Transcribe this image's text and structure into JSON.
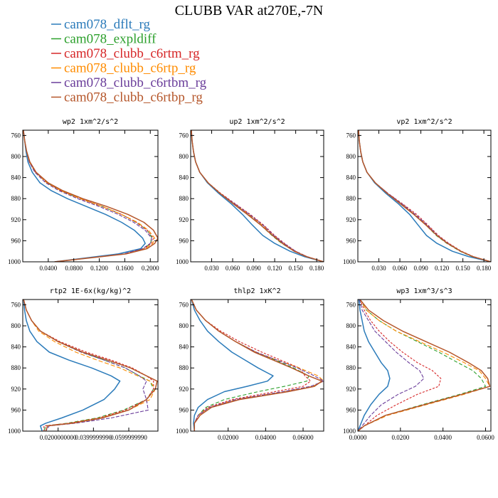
{
  "figure_title": "CLUBB VAR at270E,-7N",
  "colors": {
    "cam078_dflt_rg": "#2b7bba",
    "cam078_expldiff": "#2ca02c",
    "cam078_clubb_c6rtm_rg": "#d62728",
    "cam078_clubb_c6rtp_rg": "#ff8c00",
    "cam078_clubb_c6rtbm_rg": "#6a3d9a",
    "cam078_clubb_c6rtbp_rg": "#b5562a"
  },
  "legend": [
    {
      "name": "cam078_dflt_rg",
      "color": "#2b7bba",
      "dash": "solid"
    },
    {
      "name": "cam078_expldiff",
      "color": "#2ca02c",
      "dash": "solid"
    },
    {
      "name": "cam078_clubb_c6rtm_rg",
      "color": "#d62728",
      "dash": "solid"
    },
    {
      "name": "cam078_clubb_c6rtp_rg",
      "color": "#ff8c00",
      "dash": "solid"
    },
    {
      "name": "cam078_clubb_c6rtbm_rg",
      "color": "#6a3d9a",
      "dash": "solid"
    },
    {
      "name": "cam078_clubb_c6rtbp_rg",
      "color": "#b5562a",
      "dash": "solid"
    }
  ],
  "chart_data": [
    {
      "type": "line",
      "title": "wp2  1xm^2/s^2",
      "xlim": [
        0,
        0.212
      ],
      "ylim": [
        1000,
        750
      ],
      "xticks": [
        0.04,
        0.08,
        0.12,
        0.16,
        0.2
      ],
      "xtick_labels": [
        "0.0400",
        "0.0800",
        "0.1200",
        "0.1600",
        "0.2000"
      ],
      "yticks": [
        760,
        800,
        840,
        880,
        920,
        960,
        1000
      ],
      "y": [
        750,
        770,
        790,
        810,
        830,
        850,
        865,
        880,
        895,
        910,
        925,
        940,
        955,
        965,
        975,
        985,
        1000
      ],
      "series": [
        {
          "name": "cam078_dflt_rg",
          "x": [
            0.001,
            0.003,
            0.005,
            0.008,
            0.015,
            0.027,
            0.045,
            0.07,
            0.1,
            0.13,
            0.155,
            0.175,
            0.188,
            0.192,
            0.185,
            0.15,
            0.05
          ]
        },
        {
          "name": "cam078_expldiff",
          "x": [
            0.001,
            0.003,
            0.006,
            0.01,
            0.02,
            0.038,
            0.06,
            0.09,
            0.125,
            0.155,
            0.178,
            0.195,
            0.203,
            0.2,
            0.19,
            0.16,
            0.05
          ]
        },
        {
          "name": "cam078_clubb_c6rtm_rg",
          "x": [
            0.001,
            0.003,
            0.006,
            0.01,
            0.02,
            0.038,
            0.06,
            0.09,
            0.125,
            0.155,
            0.178,
            0.195,
            0.205,
            0.202,
            0.19,
            0.16,
            0.05
          ]
        },
        {
          "name": "cam078_clubb_c6rtp_rg",
          "x": [
            0.001,
            0.003,
            0.006,
            0.01,
            0.02,
            0.038,
            0.06,
            0.09,
            0.125,
            0.155,
            0.18,
            0.197,
            0.207,
            0.204,
            0.192,
            0.16,
            0.05
          ]
        },
        {
          "name": "cam078_clubb_c6rtbm_rg",
          "x": [
            0.001,
            0.003,
            0.006,
            0.01,
            0.019,
            0.036,
            0.057,
            0.086,
            0.12,
            0.15,
            0.174,
            0.192,
            0.202,
            0.2,
            0.188,
            0.158,
            0.05
          ]
        },
        {
          "name": "cam078_clubb_c6rtbp_rg",
          "x": [
            0.001,
            0.003,
            0.006,
            0.011,
            0.021,
            0.04,
            0.063,
            0.094,
            0.132,
            0.165,
            0.19,
            0.205,
            0.212,
            0.207,
            0.195,
            0.162,
            0.05
          ]
        }
      ]
    },
    {
      "type": "line",
      "title": "up2  1xm^2/s^2",
      "xlim": [
        0,
        0.19
      ],
      "ylim": [
        1000,
        750
      ],
      "xticks": [
        0.03,
        0.06,
        0.09,
        0.12,
        0.15,
        0.18
      ],
      "xtick_labels": [
        "0.030",
        "0.060",
        "0.090",
        "0.120",
        "0.150",
        "0.180"
      ],
      "yticks": [
        760,
        800,
        840,
        880,
        920,
        960,
        1000
      ],
      "y": [
        750,
        770,
        790,
        810,
        830,
        850,
        870,
        890,
        910,
        930,
        950,
        965,
        980,
        990,
        1000
      ],
      "series": [
        {
          "name": "cam078_dflt_rg",
          "x": [
            0.001,
            0.002,
            0.004,
            0.007,
            0.013,
            0.024,
            0.04,
            0.058,
            0.074,
            0.088,
            0.103,
            0.12,
            0.142,
            0.162,
            0.19
          ]
        },
        {
          "name": "cam078_expldiff",
          "x": [
            0.001,
            0.002,
            0.004,
            0.007,
            0.013,
            0.025,
            0.042,
            0.062,
            0.082,
            0.1,
            0.116,
            0.13,
            0.148,
            0.165,
            0.19
          ]
        },
        {
          "name": "cam078_clubb_c6rtm_rg",
          "x": [
            0.001,
            0.002,
            0.004,
            0.007,
            0.013,
            0.025,
            0.043,
            0.064,
            0.085,
            0.104,
            0.12,
            0.134,
            0.15,
            0.166,
            0.19
          ]
        },
        {
          "name": "cam078_clubb_c6rtp_rg",
          "x": [
            0.001,
            0.002,
            0.004,
            0.007,
            0.013,
            0.025,
            0.042,
            0.062,
            0.083,
            0.102,
            0.118,
            0.132,
            0.149,
            0.165,
            0.19
          ]
        },
        {
          "name": "cam078_clubb_c6rtbm_rg",
          "x": [
            0.001,
            0.002,
            0.004,
            0.007,
            0.013,
            0.025,
            0.042,
            0.063,
            0.084,
            0.103,
            0.119,
            0.133,
            0.15,
            0.166,
            0.19
          ]
        },
        {
          "name": "cam078_clubb_c6rtbp_rg",
          "x": [
            0.001,
            0.002,
            0.004,
            0.007,
            0.013,
            0.025,
            0.042,
            0.061,
            0.081,
            0.1,
            0.117,
            0.131,
            0.148,
            0.165,
            0.19
          ]
        }
      ]
    },
    {
      "type": "line",
      "title": "vp2  1xm^2/s^2",
      "xlim": [
        0,
        0.19
      ],
      "ylim": [
        1000,
        750
      ],
      "xticks": [
        0.03,
        0.06,
        0.09,
        0.12,
        0.15,
        0.18
      ],
      "xtick_labels": [
        "0.030",
        "0.060",
        "0.090",
        "0.120",
        "0.150",
        "0.180"
      ],
      "yticks": [
        760,
        800,
        840,
        880,
        920,
        960,
        1000
      ],
      "y": [
        750,
        770,
        790,
        810,
        830,
        850,
        870,
        890,
        910,
        930,
        950,
        965,
        980,
        990,
        1000
      ],
      "series": [
        {
          "name": "cam078_dflt_rg",
          "x": [
            0.001,
            0.002,
            0.004,
            0.007,
            0.013,
            0.024,
            0.04,
            0.058,
            0.074,
            0.086,
            0.098,
            0.113,
            0.135,
            0.158,
            0.19
          ]
        },
        {
          "name": "cam078_expldiff",
          "x": [
            0.001,
            0.002,
            0.004,
            0.007,
            0.013,
            0.025,
            0.042,
            0.062,
            0.08,
            0.097,
            0.112,
            0.127,
            0.146,
            0.163,
            0.19
          ]
        },
        {
          "name": "cam078_clubb_c6rtm_rg",
          "x": [
            0.001,
            0.002,
            0.004,
            0.007,
            0.013,
            0.025,
            0.043,
            0.064,
            0.084,
            0.1,
            0.115,
            0.13,
            0.148,
            0.165,
            0.19
          ]
        },
        {
          "name": "cam078_clubb_c6rtp_rg",
          "x": [
            0.001,
            0.002,
            0.004,
            0.007,
            0.013,
            0.025,
            0.042,
            0.062,
            0.081,
            0.098,
            0.113,
            0.128,
            0.147,
            0.164,
            0.19
          ]
        },
        {
          "name": "cam078_clubb_c6rtbm_rg",
          "x": [
            0.001,
            0.002,
            0.004,
            0.007,
            0.013,
            0.025,
            0.043,
            0.063,
            0.082,
            0.099,
            0.114,
            0.129,
            0.147,
            0.164,
            0.19
          ]
        },
        {
          "name": "cam078_clubb_c6rtbp_rg",
          "x": [
            0.001,
            0.002,
            0.004,
            0.007,
            0.013,
            0.025,
            0.042,
            0.061,
            0.08,
            0.097,
            0.113,
            0.128,
            0.147,
            0.164,
            0.19
          ]
        }
      ]
    },
    {
      "type": "line",
      "title": "rtp2  1E-6x(kg/kg)^2",
      "xlim": [
        0,
        0.0765
      ],
      "ylim": [
        1000,
        750
      ],
      "xticks": [
        0.02,
        0.04,
        0.06
      ],
      "xtick_labels": [
        "0.0200000000",
        "0.0399999990",
        "0.0599999990"
      ],
      "yticks": [
        760,
        800,
        840,
        880,
        920,
        960,
        1000
      ],
      "y": [
        750,
        770,
        790,
        810,
        830,
        850,
        865,
        880,
        895,
        905,
        920,
        940,
        960,
        975,
        985,
        990,
        1000
      ],
      "series": [
        {
          "name": "cam078_dflt_rg",
          "x": [
            0.0005,
            0.001,
            0.002,
            0.004,
            0.008,
            0.015,
            0.026,
            0.039,
            0.05,
            0.055,
            0.052,
            0.046,
            0.034,
            0.022,
            0.013,
            0.01,
            0.011
          ]
        },
        {
          "name": "cam078_expldiff",
          "x": [
            0.0005,
            0.002,
            0.005,
            0.01,
            0.02,
            0.033,
            0.046,
            0.058,
            0.066,
            0.072,
            0.074,
            0.07,
            0.057,
            0.042,
            0.025,
            0.013,
            0.012
          ]
        },
        {
          "name": "cam078_clubb_c6rtm_rg",
          "x": [
            0.0005,
            0.002,
            0.005,
            0.01,
            0.021,
            0.036,
            0.05,
            0.062,
            0.07,
            0.074,
            0.074,
            0.07,
            0.058,
            0.043,
            0.026,
            0.012,
            0.012
          ]
        },
        {
          "name": "cam078_clubb_c6rtp_rg",
          "x": [
            0.0005,
            0.002,
            0.005,
            0.009,
            0.018,
            0.03,
            0.042,
            0.055,
            0.065,
            0.072,
            0.075,
            0.072,
            0.06,
            0.044,
            0.027,
            0.014,
            0.013
          ]
        },
        {
          "name": "cam078_clubb_c6rtbm_rg",
          "x": [
            0.0005,
            0.002,
            0.005,
            0.01,
            0.02,
            0.033,
            0.046,
            0.058,
            0.066,
            0.07,
            0.068,
            0.07,
            0.071,
            0.05,
            0.03,
            0.015,
            0.013
          ]
        },
        {
          "name": "cam078_clubb_c6rtbp_rg",
          "x": [
            0.0005,
            0.002,
            0.005,
            0.01,
            0.02,
            0.034,
            0.048,
            0.061,
            0.07,
            0.076,
            0.075,
            0.07,
            0.06,
            0.045,
            0.028,
            0.014,
            0.013
          ]
        }
      ]
    },
    {
      "type": "line",
      "title": "thlp2  1xK^2",
      "xlim": [
        0,
        0.071
      ],
      "ylim": [
        1000,
        750
      ],
      "xticks": [
        0.02,
        0.04,
        0.06
      ],
      "xtick_labels": [
        "0.02000",
        "0.04000",
        "0.06000"
      ],
      "yticks": [
        760,
        800,
        840,
        880,
        920,
        960,
        1000
      ],
      "y": [
        750,
        770,
        790,
        810,
        830,
        850,
        865,
        880,
        895,
        905,
        915,
        925,
        940,
        955,
        970,
        985,
        1000
      ],
      "series": [
        {
          "name": "cam078_dflt_rg",
          "x": [
            0.0005,
            0.002,
            0.005,
            0.009,
            0.015,
            0.022,
            0.029,
            0.036,
            0.044,
            0.041,
            0.03,
            0.018,
            0.009,
            0.004,
            0.002,
            0.0015,
            0.002
          ]
        },
        {
          "name": "cam078_expldiff",
          "x": [
            0.0005,
            0.003,
            0.008,
            0.015,
            0.024,
            0.035,
            0.045,
            0.055,
            0.063,
            0.062,
            0.05,
            0.036,
            0.018,
            0.008,
            0.004,
            0.002,
            0.002
          ]
        },
        {
          "name": "cam078_clubb_c6rtm_rg",
          "x": [
            0.0005,
            0.003,
            0.008,
            0.016,
            0.026,
            0.038,
            0.048,
            0.058,
            0.061,
            0.064,
            0.06,
            0.045,
            0.022,
            0.009,
            0.004,
            0.002,
            0.002
          ]
        },
        {
          "name": "cam078_clubb_c6rtp_rg",
          "x": [
            0.0005,
            0.003,
            0.008,
            0.015,
            0.024,
            0.035,
            0.046,
            0.058,
            0.068,
            0.071,
            0.065,
            0.05,
            0.024,
            0.01,
            0.004,
            0.002,
            0.002
          ]
        },
        {
          "name": "cam078_clubb_c6rtbm_rg",
          "x": [
            0.0005,
            0.003,
            0.008,
            0.015,
            0.024,
            0.035,
            0.046,
            0.057,
            0.066,
            0.071,
            0.064,
            0.049,
            0.024,
            0.01,
            0.004,
            0.002,
            0.002
          ]
        },
        {
          "name": "cam078_clubb_c6rtbp_rg",
          "x": [
            0.0005,
            0.003,
            0.008,
            0.015,
            0.024,
            0.034,
            0.044,
            0.054,
            0.063,
            0.07,
            0.066,
            0.052,
            0.026,
            0.011,
            0.005,
            0.002,
            0.002
          ]
        }
      ]
    },
    {
      "type": "line",
      "title": "wp3  1xm^3/s^3",
      "xlim": [
        0,
        0.0625
      ],
      "ylim": [
        1000,
        750
      ],
      "xticks": [
        0.0,
        0.02,
        0.04,
        0.06
      ],
      "xtick_labels": [
        "0.0000",
        "0.0200",
        "0.0400",
        "0.0600"
      ],
      "yticks": [
        760,
        800,
        840,
        880,
        920,
        960,
        1000
      ],
      "y": [
        750,
        770,
        790,
        810,
        830,
        850,
        870,
        885,
        900,
        915,
        930,
        950,
        970,
        990,
        1000
      ],
      "series": [
        {
          "name": "cam078_dflt_rg",
          "x": [
            0.0005,
            0.001,
            0.002,
            0.003,
            0.005,
            0.008,
            0.011,
            0.014,
            0.015,
            0.014,
            0.01,
            0.006,
            0.003,
            0.001,
            0.0
          ]
        },
        {
          "name": "cam078_expldiff",
          "x": [
            0.001,
            0.004,
            0.01,
            0.018,
            0.028,
            0.038,
            0.047,
            0.054,
            0.058,
            0.06,
            0.048,
            0.03,
            0.013,
            0.003,
            0.0
          ]
        },
        {
          "name": "cam078_clubb_c6rtm_rg",
          "x": [
            0.001,
            0.003,
            0.006,
            0.01,
            0.015,
            0.021,
            0.028,
            0.035,
            0.039,
            0.038,
            0.028,
            0.018,
            0.009,
            0.003,
            0.0
          ]
        },
        {
          "name": "cam078_clubb_c6rtp_rg",
          "x": [
            0.001,
            0.004,
            0.01,
            0.018,
            0.029,
            0.04,
            0.05,
            0.057,
            0.06,
            0.062,
            0.05,
            0.032,
            0.014,
            0.003,
            0.0
          ]
        },
        {
          "name": "cam078_clubb_c6rtbm_rg",
          "x": [
            0.0008,
            0.002,
            0.005,
            0.008,
            0.013,
            0.018,
            0.024,
            0.029,
            0.031,
            0.027,
            0.019,
            0.011,
            0.006,
            0.002,
            0.0
          ]
        },
        {
          "name": "cam078_clubb_c6rtbp_rg",
          "x": [
            0.001,
            0.005,
            0.012,
            0.021,
            0.032,
            0.043,
            0.052,
            0.058,
            0.061,
            0.062,
            0.049,
            0.031,
            0.013,
            0.003,
            0.0
          ]
        }
      ]
    }
  ]
}
